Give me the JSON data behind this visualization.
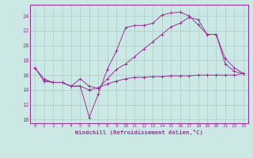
{
  "xlabel": "Windchill (Refroidissement éolien,°C)",
  "bg_color": "#cce8e4",
  "grid_color": "#aacccc",
  "line_color": "#993399",
  "xlim": [
    -0.5,
    23.5
  ],
  "ylim": [
    9.5,
    25.5
  ],
  "xticks": [
    0,
    1,
    2,
    3,
    4,
    5,
    6,
    7,
    8,
    9,
    10,
    11,
    12,
    13,
    14,
    15,
    16,
    17,
    18,
    19,
    20,
    21,
    22,
    23
  ],
  "yticks": [
    10,
    12,
    14,
    16,
    18,
    20,
    22,
    24
  ],
  "line1_x": [
    0,
    1,
    2,
    3,
    4,
    5,
    6,
    7,
    8,
    9,
    10,
    11,
    12,
    13,
    14,
    15,
    16,
    17,
    18,
    19,
    20,
    21,
    22,
    23
  ],
  "line1_y": [
    17.0,
    15.2,
    15.0,
    15.0,
    14.5,
    14.5,
    10.3,
    13.5,
    16.8,
    19.3,
    22.4,
    22.7,
    22.7,
    23.0,
    24.1,
    24.4,
    24.5,
    24.0,
    22.8,
    21.5,
    21.5,
    18.2,
    17.0,
    16.2
  ],
  "line2_x": [
    0,
    1,
    2,
    3,
    4,
    5,
    6,
    7,
    8,
    9,
    10,
    11,
    12,
    13,
    14,
    15,
    16,
    17,
    18,
    19,
    20,
    21,
    22,
    23
  ],
  "line2_y": [
    17.0,
    15.5,
    15.0,
    15.0,
    14.5,
    15.5,
    14.5,
    14.2,
    15.5,
    16.8,
    17.5,
    18.5,
    19.5,
    20.5,
    21.5,
    22.5,
    23.0,
    23.8,
    23.5,
    21.5,
    21.5,
    17.5,
    16.5,
    16.2
  ],
  "line3_x": [
    1,
    2,
    3,
    4,
    5,
    6,
    7,
    8,
    9,
    10,
    11,
    12,
    13,
    14,
    15,
    16,
    17,
    18,
    19,
    20,
    21,
    22,
    23
  ],
  "line3_y": [
    15.3,
    15.0,
    15.0,
    14.5,
    14.5,
    14.0,
    14.3,
    14.8,
    15.2,
    15.5,
    15.7,
    15.7,
    15.8,
    15.8,
    15.9,
    15.9,
    15.9,
    16.0,
    16.0,
    16.0,
    16.0,
    16.0,
    16.2
  ],
  "line1_marker_x": [
    0,
    1,
    2,
    3,
    4,
    5,
    6,
    7,
    8,
    9,
    10,
    11,
    12,
    13,
    14,
    15,
    16,
    17,
    18,
    19,
    20,
    21,
    22,
    23
  ],
  "line1_marker_y": [
    17.0,
    15.2,
    15.0,
    15.0,
    14.5,
    14.5,
    10.3,
    13.5,
    16.8,
    19.3,
    22.4,
    22.7,
    22.7,
    23.0,
    24.1,
    24.4,
    24.5,
    24.0,
    22.8,
    21.5,
    21.5,
    18.2,
    17.0,
    16.2
  ]
}
